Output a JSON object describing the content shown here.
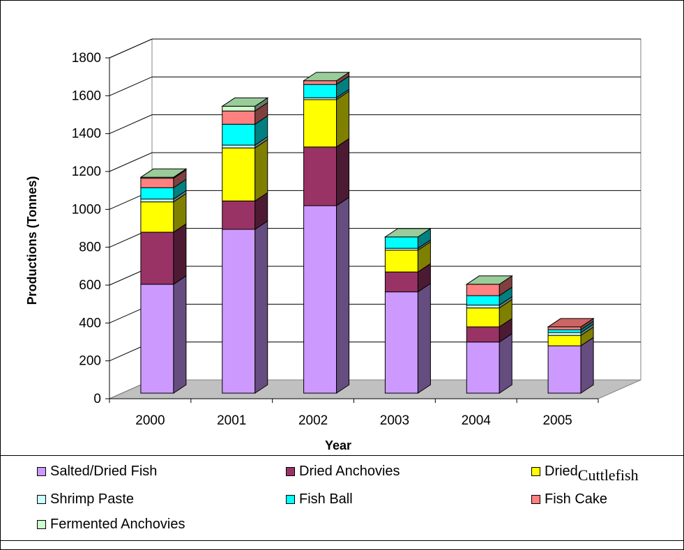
{
  "chart_data": {
    "type": "bar",
    "stacked": true,
    "three_d": true,
    "categories": [
      "2000",
      "2001",
      "2002",
      "2003",
      "2004",
      "2005"
    ],
    "xlabel": "Year",
    "ylabel": "Productions (Tonnes)",
    "ylim": [
      0,
      1800
    ],
    "yticks": [
      "0",
      "200",
      "400",
      "600",
      "800",
      "1000",
      "1200",
      "1400",
      "1600",
      "1800"
    ],
    "grid": true,
    "legend_position": "bottom",
    "series": [
      {
        "name": "Salted/Dried Fish",
        "color": "#cc99ff",
        "values": [
          575,
          865,
          990,
          535,
          270,
          250
        ]
      },
      {
        "name": "Dried Anchovies",
        "color": "#993366",
        "values": [
          275,
          150,
          310,
          105,
          80,
          0
        ]
      },
      {
        "name": "Dried Cuttlefish",
        "color": "#ffff00",
        "values": [
          160,
          280,
          250,
          115,
          100,
          55
        ]
      },
      {
        "name": "Shrimp Paste",
        "color": "#ccffff",
        "values": [
          15,
          15,
          10,
          10,
          15,
          15
        ]
      },
      {
        "name": "Fish Ball",
        "color": "#00ffff",
        "values": [
          60,
          110,
          70,
          60,
          50,
          15
        ]
      },
      {
        "name": "Fish Cake",
        "color": "#ff8080",
        "values": [
          50,
          70,
          20,
          0,
          60,
          15
        ]
      },
      {
        "name": "Fermented Anchovies",
        "color": "#ccffcc",
        "values": [
          5,
          25,
          0,
          0,
          0,
          0
        ]
      }
    ],
    "legend": {
      "items": [
        {
          "label": "Salted/Dried Fish",
          "color": "#cc99ff"
        },
        {
          "label": "Dried Anchovies",
          "color": "#993366"
        },
        {
          "label": "Dried",
          "label_sub": "Cuttlefish",
          "color": "#ffff00"
        },
        {
          "label": "Shrimp Paste",
          "color": "#ccffff"
        },
        {
          "label": "Fish Ball",
          "color": "#00ffff"
        },
        {
          "label": "Fish Cake",
          "color": "#ff8080"
        },
        {
          "label": "Fermented Anchovies",
          "color": "#ccffcc"
        }
      ]
    },
    "floor_color": "#c0c0c0",
    "wall_color": "#ffffff",
    "cap_color": "#99cc99",
    "last_cap_color": "#cc6666"
  }
}
